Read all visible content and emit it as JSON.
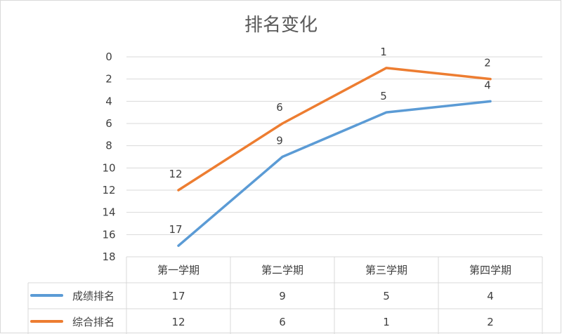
{
  "chart_data": {
    "type": "line",
    "title": "排名变化",
    "categories": [
      "第一学期",
      "第二学期",
      "第三学期",
      "第四学期"
    ],
    "y_axis": {
      "reversed": true,
      "min": 0,
      "max": 18,
      "step": 2,
      "ticks": [
        "0",
        "2",
        "4",
        "6",
        "8",
        "10",
        "12",
        "14",
        "16",
        "18"
      ]
    },
    "grid": true,
    "legend": "data-table",
    "series": [
      {
        "name": "成绩排名",
        "values": [
          17,
          9,
          5,
          4
        ],
        "color": "#5b9bd5"
      },
      {
        "name": "综合排名",
        "values": [
          12,
          6,
          1,
          2
        ],
        "color": "#ed7d31"
      }
    ]
  }
}
